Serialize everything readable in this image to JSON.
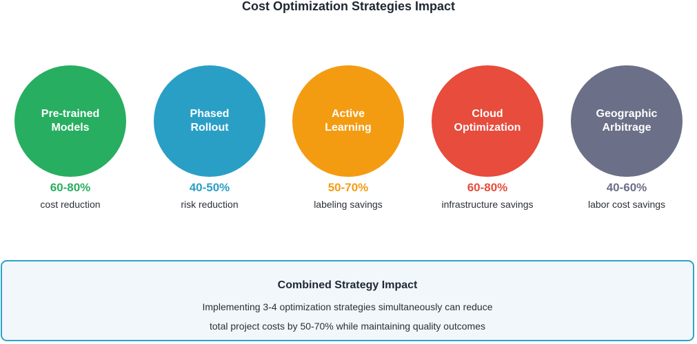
{
  "title": "Cost Optimization Strategies Impact",
  "strategies": [
    {
      "line1": "Pre-trained",
      "line2": "Models",
      "percent": "60-80%",
      "description": "cost reduction",
      "color": "#27ae60"
    },
    {
      "line1": "Phased",
      "line2": "Rollout",
      "percent": "40-50%",
      "description": "risk reduction",
      "color": "#2a9fc6"
    },
    {
      "line1": "Active",
      "line2": "Learning",
      "percent": "50-70%",
      "description": "labeling savings",
      "color": "#f39c12"
    },
    {
      "line1": "Cloud",
      "line2": "Optimization",
      "percent": "60-80%",
      "description": "infrastructure savings",
      "color": "#e74c3c"
    },
    {
      "line1": "Geographic",
      "line2": "Arbitrage",
      "percent": "40-60%",
      "description": "labor cost savings",
      "color": "#6b6f87"
    }
  ],
  "summary": {
    "title": "Combined Strategy Impact",
    "line1": "Implementing 3-4 optimization strategies simultaneously can reduce",
    "line2": "total project costs by 50-70% while maintaining quality outcomes",
    "border_color": "#2ba3c4",
    "background_color": "#f1f7fb"
  }
}
